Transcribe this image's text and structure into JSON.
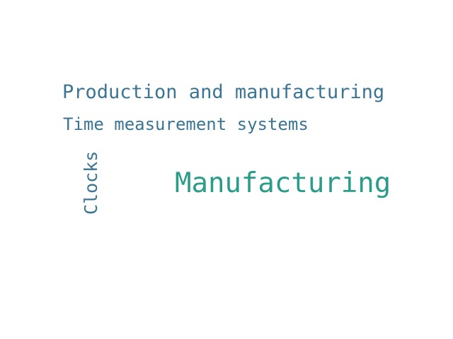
{
  "word_cloud": {
    "words": [
      {
        "text": "Production and manufacturing",
        "color": "#3a7594"
      },
      {
        "text": "Time measurement systems",
        "color": "#3a7594"
      },
      {
        "text": "Manufacturing",
        "color": "#2a9d8a"
      },
      {
        "text": "Clocks",
        "color": "#3a7594",
        "orientation": "vertical"
      }
    ]
  }
}
